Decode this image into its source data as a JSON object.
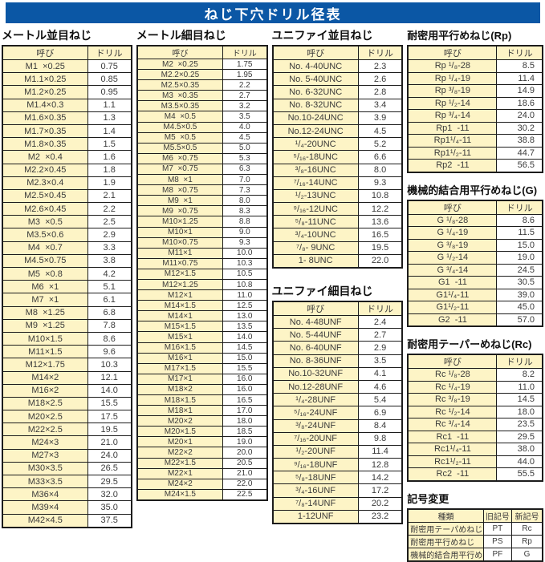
{
  "title": "ねじ下穴ドリル径表",
  "colors": {
    "banner_blue": "#0b57a5",
    "cell_yellow": "#fdf4c6",
    "border": "#1c1c1c",
    "text": "#3a3a3a"
  },
  "tables": {
    "metric_coarse": {
      "title": "メートル並目ねじ",
      "headers": [
        "呼び",
        "ドリル"
      ],
      "rows": [
        [
          "M1  ×0.25",
          "0.75"
        ],
        [
          "M1.1×0.25",
          "0.85"
        ],
        [
          "M1.2×0.25",
          "0.95"
        ],
        [
          "M1.4×0.3",
          "1.1"
        ],
        [
          "M1.6×0.35",
          "1.3"
        ],
        [
          "M1.7×0.35",
          "1.4"
        ],
        [
          "M1.8×0.35",
          "1.5"
        ],
        [
          "M2  ×0.4",
          "1.6"
        ],
        [
          "M2.2×0.45",
          "1.8"
        ],
        [
          "M2.3×0.4",
          "1.9"
        ],
        [
          "M2.5×0.45",
          "2.1"
        ],
        [
          "M2.6×0.45",
          "2.2"
        ],
        [
          "M3  ×0.5",
          "2.5"
        ],
        [
          "M3.5×0.6",
          "2.9"
        ],
        [
          "M4  ×0.7",
          "3.3"
        ],
        [
          "M4.5×0.75",
          "3.8"
        ],
        [
          "M5  ×0.8",
          "4.2"
        ],
        [
          "M6  ×1",
          "5.1"
        ],
        [
          "M7  ×1",
          "6.1"
        ],
        [
          "M8  ×1.25",
          "6.8"
        ],
        [
          "M9  ×1.25",
          "7.8"
        ],
        [
          "M10×1.5",
          "8.6"
        ],
        [
          "M11×1.5",
          "9.6"
        ],
        [
          "M12×1.75",
          "10.3"
        ],
        [
          "M14×2",
          "12.1"
        ],
        [
          "M16×2",
          "14.0"
        ],
        [
          "M18×2.5",
          "15.5"
        ],
        [
          "M20×2.5",
          "17.5"
        ],
        [
          "M22×2.5",
          "19.5"
        ],
        [
          "M24×3",
          "21.0"
        ],
        [
          "M27×3",
          "24.0"
        ],
        [
          "M30×3.5",
          "26.5"
        ],
        [
          "M33×3.5",
          "29.5"
        ],
        [
          "M36×4",
          "32.0"
        ],
        [
          "M39×4",
          "35.0"
        ],
        [
          "M42×4.5",
          "37.5"
        ]
      ]
    },
    "metric_fine": {
      "title": "メートル細目ねじ",
      "headers": [
        "呼び",
        "ドリル"
      ],
      "rows": [
        [
          "M2  ×0.25",
          "1.75"
        ],
        [
          "M2.2×0.25",
          "1.95"
        ],
        [
          "M2.5×0.35",
          "2.2"
        ],
        [
          "M3  ×0.35",
          "2.7"
        ],
        [
          "M3.5×0.35",
          "3.2"
        ],
        [
          "M4  ×0.5",
          "3.5"
        ],
        [
          "M4.5×0.5",
          "4.0"
        ],
        [
          "M5  ×0.5",
          "4.5"
        ],
        [
          "M5.5×0.5",
          "5.0"
        ],
        [
          "M6  ×0.75",
          "5.3"
        ],
        [
          "M7  ×0.75",
          "6.3"
        ],
        [
          "M8  ×1",
          "7.0"
        ],
        [
          "M8  ×0.75",
          "7.3"
        ],
        [
          "M9  ×1",
          "8.0"
        ],
        [
          "M9  ×0.75",
          "8.3"
        ],
        [
          "M10×1.25",
          "8.8"
        ],
        [
          "M10×1",
          "9.0"
        ],
        [
          "M10×0.75",
          "9.3"
        ],
        [
          "M11×1",
          "10.0"
        ],
        [
          "M11×0.75",
          "10.3"
        ],
        [
          "M12×1.5",
          "10.5"
        ],
        [
          "M12×1.25",
          "10.8"
        ],
        [
          "M12×1",
          "11.0"
        ],
        [
          "M14×1.5",
          "12.5"
        ],
        [
          "M14×1",
          "13.0"
        ],
        [
          "M15×1.5",
          "13.5"
        ],
        [
          "M15×1",
          "14.0"
        ],
        [
          "M16×1.5",
          "14.5"
        ],
        [
          "M16×1",
          "15.0"
        ],
        [
          "M17×1.5",
          "15.5"
        ],
        [
          "M17×1",
          "16.0"
        ],
        [
          "M18×2",
          "16.0"
        ],
        [
          "M18×1.5",
          "16.5"
        ],
        [
          "M18×1",
          "17.0"
        ],
        [
          "M20×2",
          "18.0"
        ],
        [
          "M20×1.5",
          "18.5"
        ],
        [
          "M20×1",
          "19.0"
        ],
        [
          "M22×2",
          "20.0"
        ],
        [
          "M22×1.5",
          "20.5"
        ],
        [
          "M22×1",
          "21.0"
        ],
        [
          "M24×2",
          "22.0"
        ],
        [
          "M24×1.5",
          "22.5"
        ]
      ]
    },
    "unified_coarse": {
      "title": "ユニファイ並目ねじ",
      "headers": [
        "呼び",
        "ドリル"
      ],
      "rows": [
        [
          "No. 4-40UNC",
          "2.3"
        ],
        [
          "No. 5-40UNC",
          "2.6"
        ],
        [
          "No. 6-32UNC",
          "2.8"
        ],
        [
          "No. 8-32UNC",
          "3.4"
        ],
        [
          "No.10-24UNC",
          "3.9"
        ],
        [
          "No.12-24UNC",
          "4.5"
        ],
        [
          "¹/₄-20UNC",
          "5.2"
        ],
        [
          "⁵/₁₆-18UNC",
          "6.6"
        ],
        [
          "³/₈-16UNC",
          "8.0"
        ],
        [
          "⁷/₁₆-14UNC",
          "9.3"
        ],
        [
          "¹/₂-13UNC",
          "10.8"
        ],
        [
          "⁹/₁₆-12UNC",
          "12.2"
        ],
        [
          "⁵/₈-11UNC",
          "13.6"
        ],
        [
          "³/₄-10UNC",
          "16.5"
        ],
        [
          "⁷/₈- 9UNC",
          "19.5"
        ],
        [
          "1- 8UNC",
          "22.0"
        ]
      ]
    },
    "unified_fine": {
      "title": "ユニファイ細目ねじ",
      "headers": [
        "呼び",
        "ドリル"
      ],
      "rows": [
        [
          "No. 4-48UNF",
          "2.4"
        ],
        [
          "No. 5-44UNF",
          "2.7"
        ],
        [
          "No. 6-40UNF",
          "2.9"
        ],
        [
          "No. 8-36UNF",
          "3.5"
        ],
        [
          "No.10-32UNF",
          "4.1"
        ],
        [
          "No.12-28UNF",
          "4.6"
        ],
        [
          "¹/₄-28UNF",
          "5.4"
        ],
        [
          "⁵/₁₆-24UNF",
          "6.9"
        ],
        [
          "³/₈-24UNF",
          "8.4"
        ],
        [
          "⁷/₁₆-20UNF",
          "9.8"
        ],
        [
          "¹/₂-20UNF",
          "11.4"
        ],
        [
          "⁹/₁₆-18UNF",
          "12.8"
        ],
        [
          "⁵/₈-18UNF",
          "14.2"
        ],
        [
          "³/₄-16UNF",
          "17.2"
        ],
        [
          "⁷/₈-14UNF",
          "20.2"
        ],
        [
          "1-12UNF",
          "23.2"
        ]
      ]
    },
    "rp": {
      "title": "耐密用平行めねじ(Rp)",
      "headers": [
        "呼び",
        "ドリル"
      ],
      "rows": [
        [
          "Rp ¹/₈-28",
          "8.5"
        ],
        [
          "Rp ¹/₄-19",
          "11.4"
        ],
        [
          "Rp ³/₈-19",
          "14.9"
        ],
        [
          "Rp ¹/₂-14",
          "18.6"
        ],
        [
          "Rp ³/₄-14",
          "24.0"
        ],
        [
          "Rp1  -11",
          "30.2"
        ],
        [
          "Rp1¹/₄-11",
          "38.8"
        ],
        [
          "Rp1¹/₂-11",
          "44.7"
        ],
        [
          "Rp2  -11",
          "56.5"
        ]
      ]
    },
    "g": {
      "title": "機械的結合用平行めねじ(G)",
      "headers": [
        "呼び",
        "ドリル"
      ],
      "rows": [
        [
          "G ¹/₈-28",
          "8.6"
        ],
        [
          "G ¹/₄-19",
          "11.5"
        ],
        [
          "G ³/₈-19",
          "15.0"
        ],
        [
          "G ¹/₂-14",
          "19.0"
        ],
        [
          "G ³/₄-14",
          "24.5"
        ],
        [
          "G1  -11",
          "30.5"
        ],
        [
          "G1¹/₄-11",
          "39.0"
        ],
        [
          "G1¹/₂-11",
          "45.0"
        ],
        [
          "G2  -11",
          "57.0"
        ]
      ]
    },
    "rc": {
      "title": "耐密用テーパーめねじ(Rc)",
      "headers": [
        "呼び",
        "ドリル"
      ],
      "rows": [
        [
          "Rc ¹/₈-28",
          "8.2"
        ],
        [
          "Rc ¹/₄-19",
          "11.0"
        ],
        [
          "Rc ³/₈-19",
          "14.5"
        ],
        [
          "Rc ¹/₂-14",
          "18.0"
        ],
        [
          "Rc ³/₄-14",
          "23.5"
        ],
        [
          "Rc1  -11",
          "29.5"
        ],
        [
          "Rc1¹/₄-11",
          "38.0"
        ],
        [
          "Rc1¹/₂-11",
          "44.0"
        ],
        [
          "Rc2  -11",
          "55.5"
        ]
      ]
    },
    "symbol_change": {
      "title": "記号変更",
      "headers": [
        "種類",
        "旧記号",
        "新記号"
      ],
      "rows": [
        [
          "耐密用テーパめねじ",
          "PT",
          "Rc"
        ],
        [
          "耐密用平行めねじ",
          "PS",
          "Rp"
        ],
        [
          "機械的結合用平行めねじ",
          "PF",
          "G"
        ]
      ]
    }
  }
}
